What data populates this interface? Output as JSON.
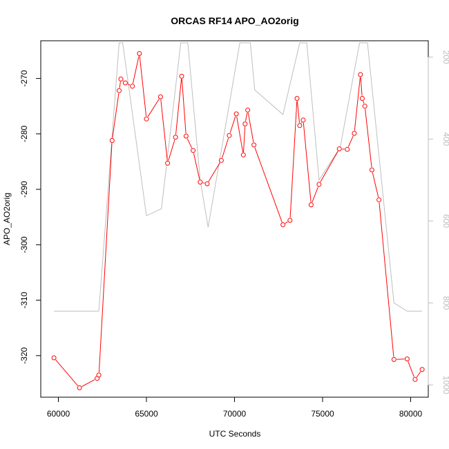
{
  "chart_data": {
    "type": "line",
    "title": "ORCAS RF14 APO_AO2orig",
    "xlabel": "UTC Seconds",
    "ylabel": "APO_AO2orig",
    "xlim": [
      59000,
      81000
    ],
    "ylim": [
      -327.5,
      -263.2
    ],
    "x_ticks": [
      60000,
      65000,
      70000,
      75000,
      80000
    ],
    "x_tick_labels": [
      "60000",
      "65000",
      "70000",
      "75000",
      "80000"
    ],
    "y_ticks": [
      -320,
      -310,
      -300,
      -290,
      -280,
      -270
    ],
    "y_tick_labels": [
      "-320",
      "-310",
      "-300",
      "-290",
      "-280",
      "-270"
    ],
    "y2lim": [
      1030,
      160
    ],
    "y2_ticks": [
      200,
      400,
      600,
      800,
      1000
    ],
    "y2_tick_labels": [
      "200",
      "400",
      "600",
      "800",
      "1000"
    ],
    "grid": false,
    "series": [
      {
        "color": "#ff0000",
        "marker": "open-circle",
        "axis": "left",
        "x": [
          59750,
          61200,
          62200,
          62300,
          63050,
          63450,
          63550,
          63800,
          64200,
          64600,
          65000,
          65800,
          66200,
          66650,
          67000,
          67250,
          67650,
          68050,
          68450,
          69250,
          69700,
          70100,
          70500,
          70600,
          70750,
          71100,
          72750,
          73150,
          73550,
          73700,
          73900,
          74350,
          74800,
          75950,
          76400,
          76800,
          77150,
          77250,
          77400,
          77800,
          78200,
          79050,
          79800,
          80250,
          80650
        ],
        "y": [
          -320.4,
          -325.8,
          -324.1,
          -323.5,
          -281.2,
          -272.2,
          -270.1,
          -270.8,
          -271.4,
          -265.5,
          -277.3,
          -273.3,
          -285.3,
          -280.6,
          -269.6,
          -280.4,
          -283.0,
          -288.7,
          -289.0,
          -284.8,
          -280.3,
          -276.4,
          -283.8,
          -278.2,
          -275.7,
          -282.0,
          -296.4,
          -295.6,
          -273.6,
          -278.5,
          -277.5,
          -292.8,
          -289.1,
          -282.7,
          -282.8,
          -279.9,
          -269.3,
          -273.6,
          -275.0,
          -286.5,
          -291.9,
          -320.7,
          -320.6,
          -324.3,
          -322.5
        ]
      },
      {
        "color": "#bebebe",
        "marker": "none",
        "axis": "right",
        "x": [
          59750,
          62300,
          63450,
          63650,
          65000,
          65850,
          66950,
          67350,
          68050,
          68500,
          70300,
          70900,
          71150,
          72750,
          73700,
          74100,
          74800,
          76000,
          77100,
          77550,
          79050,
          79800,
          80650
        ],
        "y": [
          820,
          820,
          165,
          165,
          587,
          570,
          165,
          165,
          500,
          615,
          165,
          165,
          280,
          340,
          165,
          165,
          500,
          420,
          165,
          165,
          800,
          820,
          820
        ]
      }
    ]
  }
}
